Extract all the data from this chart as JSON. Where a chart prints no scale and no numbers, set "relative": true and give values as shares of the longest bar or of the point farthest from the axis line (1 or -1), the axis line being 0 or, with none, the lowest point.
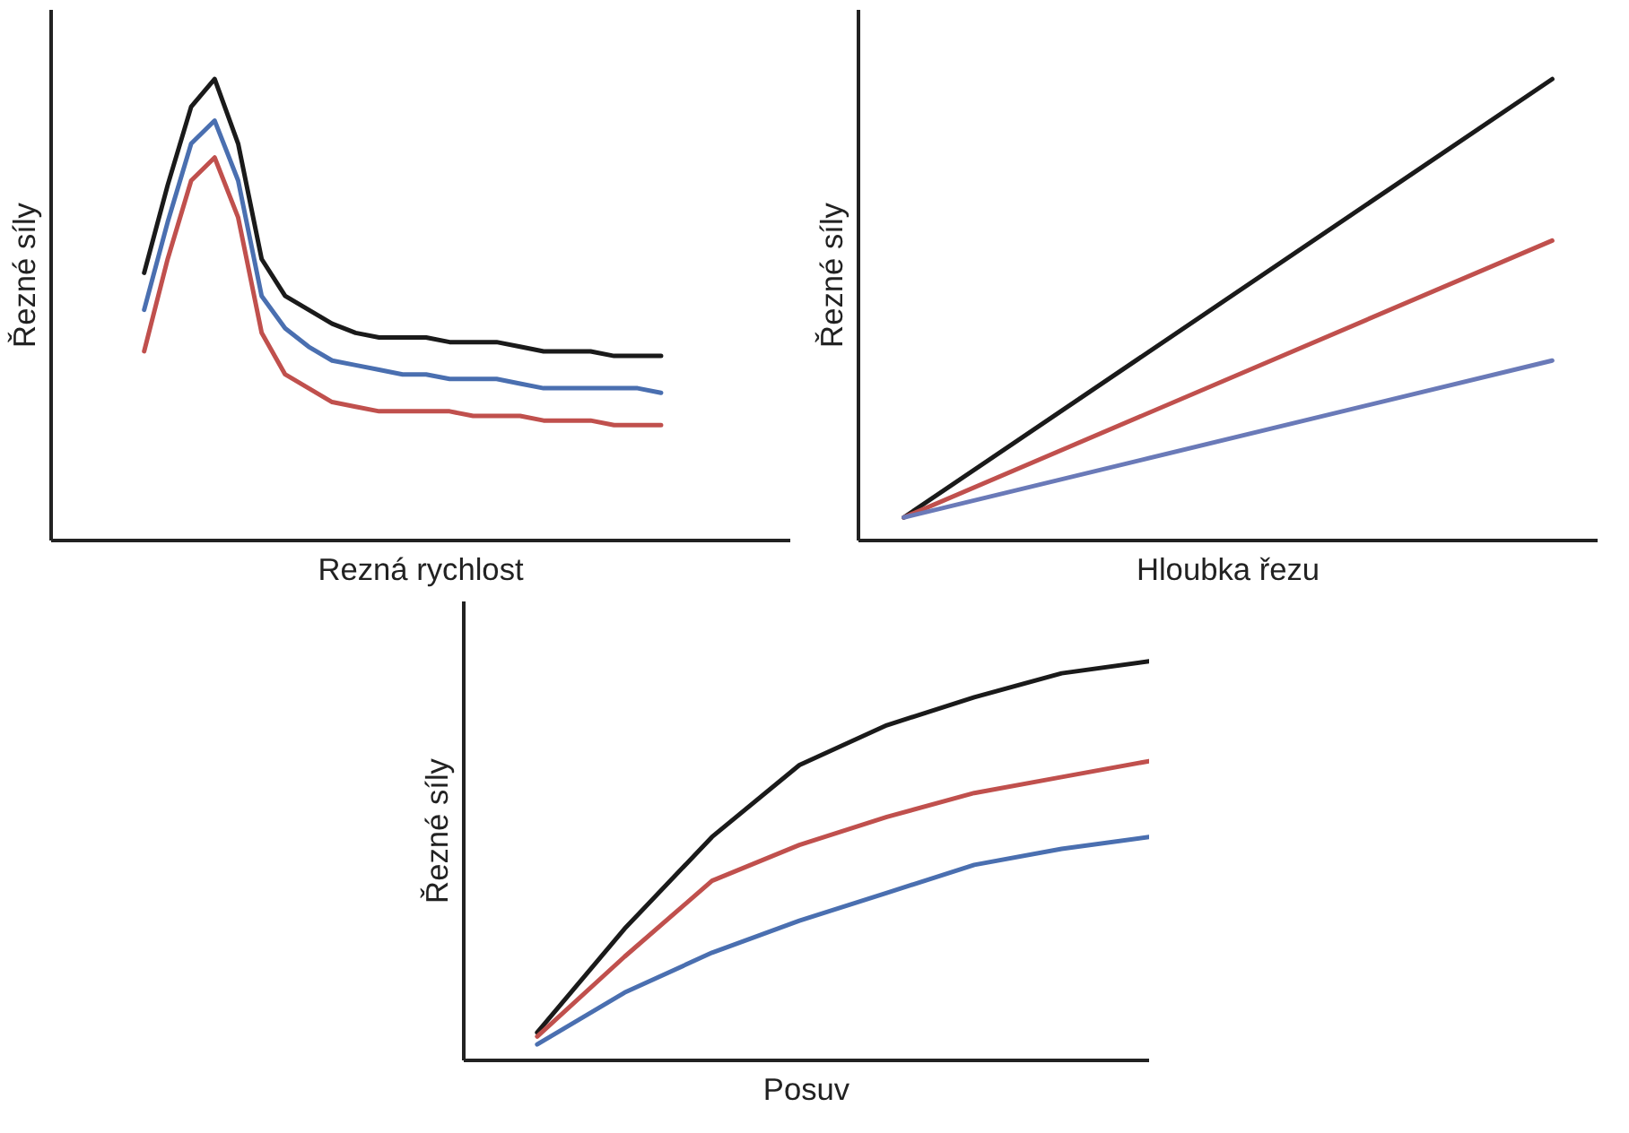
{
  "chart_data": [
    {
      "type": "line",
      "relative": true,
      "xlabel": "Rezná rychlost",
      "ylabel": "Řezné síly",
      "categories": [
        null,
        null,
        null,
        null,
        null,
        null,
        null,
        null,
        null,
        null,
        null,
        null,
        null,
        null,
        null,
        null,
        null,
        null,
        null,
        null,
        null,
        null,
        null
      ],
      "series": [
        {
          "color": "#1a1a1a",
          "values": [
            0.58,
            0.77,
            0.94,
            1.0,
            0.86,
            0.61,
            0.53,
            0.5,
            0.47,
            0.45,
            0.44,
            0.44,
            0.44,
            0.43,
            0.43,
            0.43,
            0.42,
            0.41,
            0.41,
            0.41,
            0.4,
            0.4,
            0.4
          ]
        },
        {
          "color": "#4a6fb0",
          "values": [
            0.5,
            0.69,
            0.86,
            0.91,
            0.78,
            0.53,
            0.46,
            0.42,
            0.39,
            0.38,
            0.37,
            0.36,
            0.36,
            0.35,
            0.35,
            0.35,
            0.34,
            0.33,
            0.33,
            0.33,
            0.33,
            0.33,
            0.32
          ]
        },
        {
          "color": "#c0504d",
          "values": [
            0.41,
            0.61,
            0.78,
            0.83,
            0.7,
            0.45,
            0.36,
            0.33,
            0.3,
            0.29,
            0.28,
            0.28,
            0.28,
            0.28,
            0.27,
            0.27,
            0.27,
            0.26,
            0.26,
            0.26,
            0.25,
            0.25,
            0.25
          ]
        }
      ]
    },
    {
      "type": "line",
      "relative": true,
      "xlabel": "Hloubka řezu",
      "ylabel": "Řezné síly",
      "categories": [
        null,
        null
      ],
      "series": [
        {
          "color": "#1a1a1a",
          "values": [
            0.05,
            1.0
          ]
        },
        {
          "color": "#c0504d",
          "values": [
            0.05,
            0.65
          ]
        },
        {
          "color": "#6a7ab8",
          "values": [
            0.05,
            0.39
          ]
        }
      ]
    },
    {
      "type": "line",
      "relative": true,
      "xlabel": "Posuv",
      "ylabel": "Řezné síly",
      "categories": [
        null,
        null,
        null,
        null,
        null,
        null,
        null,
        null
      ],
      "series": [
        {
          "color": "#1a1a1a",
          "values": [
            0.07,
            0.33,
            0.56,
            0.74,
            0.84,
            0.91,
            0.97,
            1.0
          ]
        },
        {
          "color": "#c0504d",
          "values": [
            0.06,
            0.26,
            0.45,
            0.54,
            0.61,
            0.67,
            0.71,
            0.75
          ]
        },
        {
          "color": "#4a6fb0",
          "values": [
            0.04,
            0.17,
            0.27,
            0.35,
            0.42,
            0.49,
            0.53,
            0.56
          ]
        }
      ]
    }
  ]
}
